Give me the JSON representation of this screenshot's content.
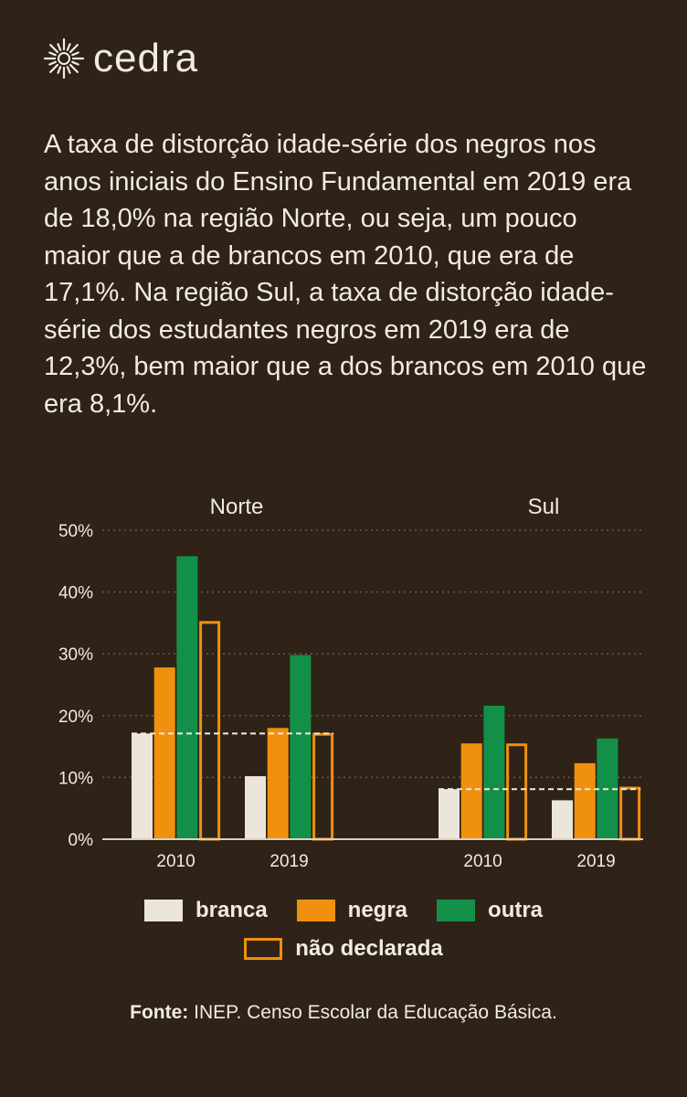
{
  "brand": {
    "name": "cedra",
    "icon": "sun-burst-icon"
  },
  "intro": "A taxa de distorção idade-série dos negros nos anos iniciais do Ensino Fundamental em 2019 era de 18,0% na região Norte, ou seja, um pouco maior que a de brancos em 2010, que era de 17,1%. Na região Sul, a taxa de distorção idade-série dos estudantes negros em 2019 era de 12,3%, bem maior que a dos brancos em 2010 que era 8,1%.",
  "colors": {
    "background": "#2f2216",
    "branca": "#ebe6d9",
    "negra": "#f0900f",
    "outra": "#12904a",
    "nao_declarada": "#f0900f",
    "text": "#f1ece0"
  },
  "chart_data": {
    "type": "bar",
    "regions": [
      "Norte",
      "Sul"
    ],
    "years": [
      "2010",
      "2019"
    ],
    "series": [
      {
        "name": "branca",
        "values": [
          [
            17.1,
            10.2
          ],
          [
            8.1,
            6.3
          ]
        ],
        "style": "filled"
      },
      {
        "name": "negra",
        "values": [
          [
            27.8,
            18.0
          ],
          [
            15.5,
            12.3
          ]
        ],
        "style": "filled"
      },
      {
        "name": "outra",
        "values": [
          [
            45.8,
            29.8
          ],
          [
            21.6,
            16.3
          ]
        ],
        "style": "filled"
      },
      {
        "name": "não declarada",
        "values": [
          [
            35.3,
            17.2
          ],
          [
            15.5,
            8.5
          ]
        ],
        "style": "outline"
      }
    ],
    "yticks": [
      "0%",
      "10%",
      "20%",
      "30%",
      "40%",
      "50%"
    ],
    "ylim": [
      0,
      50
    ],
    "reference_lines": [
      {
        "region": "Norte",
        "value": 17.1
      },
      {
        "region": "Sul",
        "value": 8.1
      }
    ],
    "grid": "dotted horizontal",
    "legend_position": "bottom"
  },
  "legend": {
    "items": [
      "branca",
      "negra",
      "outra",
      "não declarada"
    ]
  },
  "source": {
    "label": "Fonte:",
    "text": " INEP. Censo Escolar da Educação Básica."
  }
}
